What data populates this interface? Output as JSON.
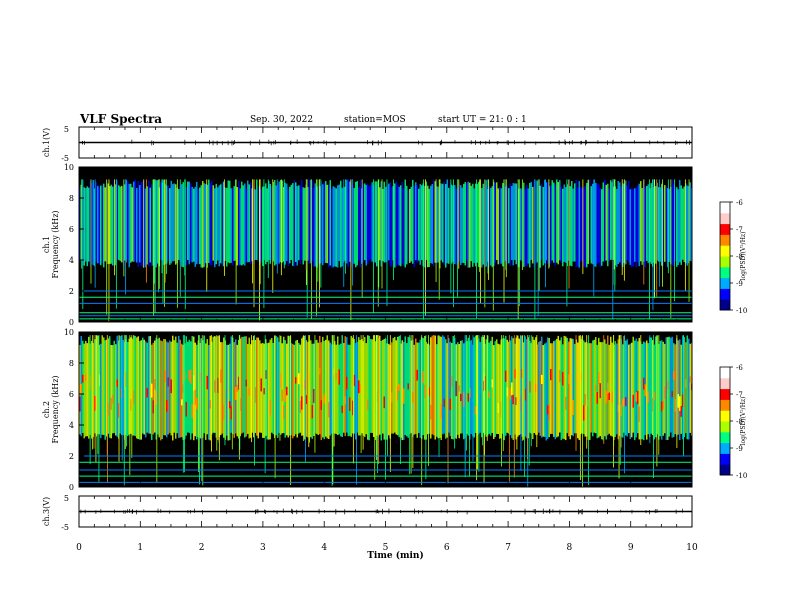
{
  "header": {
    "title": "VLF Spectra",
    "date": "Sep. 30, 2022",
    "station": "station=MOS",
    "start_time": "start  UT =   21: 0  : 1"
  },
  "colors": {
    "background": "#000000",
    "colormap": [
      "#00008b",
      "#0000ff",
      "#00aaff",
      "#00ff80",
      "#aaff00",
      "#ffff00",
      "#ff8800",
      "#ff0000",
      "#ffcccc",
      "#ffffff"
    ]
  },
  "chart_data": [
    {
      "type": "line",
      "name": "ch1-waveform",
      "ylabel": "ch.1(V)",
      "ylim": [
        -5,
        5
      ],
      "y_ticks": [
        "5",
        "-5"
      ],
      "x": [
        0,
        10
      ],
      "values": [
        0,
        0
      ]
    },
    {
      "type": "heatmap",
      "name": "ch1-spectrogram",
      "ylabel": "ch.1\nFrequency (kHz)",
      "ylim": [
        0,
        10
      ],
      "y_ticks": [
        "0",
        "2",
        "4",
        "6",
        "8",
        "10"
      ],
      "xlim": [
        0,
        10
      ],
      "band_khz": [
        3.5,
        9.2
      ],
      "colorbar": {
        "label": "log(PSD)(V²/Hz)",
        "ticks": [
          "-6",
          "-7",
          "-8",
          "-9",
          "-10"
        ],
        "range": [
          -10,
          -6
        ]
      }
    },
    {
      "type": "heatmap",
      "name": "ch2-spectrogram",
      "ylabel": "ch.2\nFrequency (kHz)",
      "ylim": [
        0,
        10
      ],
      "y_ticks": [
        "0",
        "2",
        "4",
        "6",
        "8",
        "10"
      ],
      "xlim": [
        0,
        10
      ],
      "band_khz": [
        3.0,
        9.8
      ],
      "colorbar": {
        "label": "log(PSD)(V²/Hz)",
        "ticks": [
          "-6",
          "-7",
          "-8",
          "-9",
          "-10"
        ],
        "range": [
          -10,
          -6
        ]
      }
    },
    {
      "type": "line",
      "name": "ch3-waveform",
      "ylabel": "ch.3(V)",
      "ylim": [
        -5,
        5
      ],
      "y_ticks": [
        "5",
        "-5"
      ],
      "x": [
        0,
        10
      ],
      "values": [
        0,
        0
      ]
    }
  ],
  "xaxis": {
    "label": "Time (min)",
    "ticks": [
      "0",
      "1",
      "2",
      "3",
      "4",
      "5",
      "6",
      "7",
      "8",
      "9",
      "10"
    ],
    "xlim": [
      0,
      10
    ]
  }
}
